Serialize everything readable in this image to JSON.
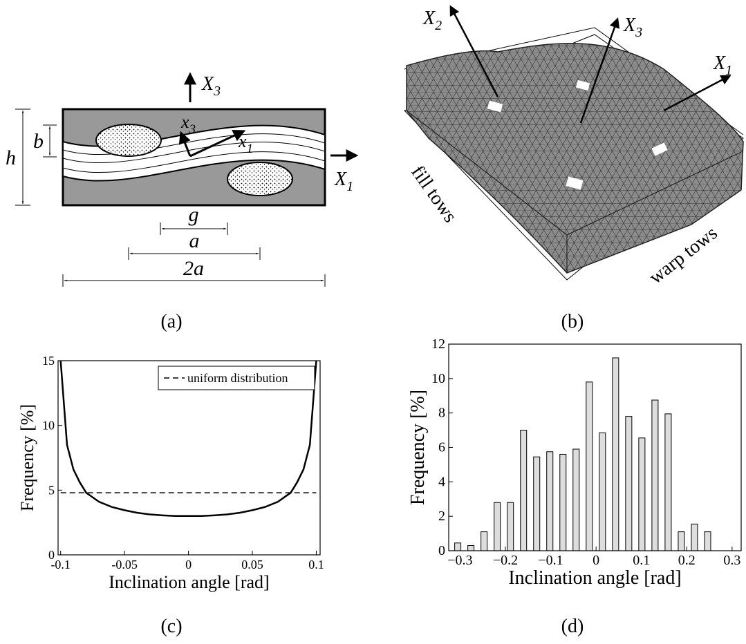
{
  "figure": {
    "panel_a": {
      "caption": "(a)",
      "X3": [
        "X",
        "3"
      ],
      "x3": [
        "x",
        "3"
      ],
      "x1": [
        "x",
        "1"
      ],
      "X1": [
        "X",
        "1"
      ],
      "b": "b",
      "h": "h",
      "g": "g",
      "a": "a",
      "two_a": "2a"
    },
    "panel_b": {
      "caption": "(b)",
      "X2": [
        "X",
        "2"
      ],
      "X3": [
        "X",
        "3"
      ],
      "X1": [
        "X",
        "1"
      ],
      "fill": "fill tows",
      "warp": "warp tows"
    },
    "panel_c_caption": "(c)",
    "panel_d_caption": "(d)"
  },
  "chart_data": [
    {
      "type": "line",
      "ylabel": "Frequency [%]",
      "xlabel": "Inclination angle [rad]",
      "x": [
        -0.1,
        -0.095,
        -0.09,
        -0.085,
        -0.08,
        -0.07,
        -0.06,
        -0.05,
        -0.04,
        -0.03,
        -0.02,
        -0.01,
        0,
        0.01,
        0.02,
        0.03,
        0.04,
        0.05,
        0.06,
        0.07,
        0.08,
        0.085,
        0.09,
        0.095,
        0.1
      ],
      "series": [
        {
          "color": "#000000",
          "values": [
            15,
            8.5,
            6.6,
            5.6,
            4.8,
            4.1,
            3.7,
            3.45,
            3.25,
            3.12,
            3.05,
            3.0,
            3.0,
            3.0,
            3.05,
            3.12,
            3.25,
            3.45,
            3.7,
            4.1,
            4.8,
            5.6,
            6.6,
            8.5,
            15
          ]
        },
        {
          "name": "uniform distribution",
          "color": "#000000",
          "dashed": true,
          "values": [
            4.8,
            4.8,
            4.8,
            4.8,
            4.8,
            4.8,
            4.8,
            4.8,
            4.8,
            4.8,
            4.8,
            4.8,
            4.8,
            4.8,
            4.8,
            4.8,
            4.8,
            4.8,
            4.8,
            4.8,
            4.8,
            4.8,
            4.8,
            4.8,
            4.8
          ]
        }
      ],
      "xlim": [
        -0.102,
        0.103
      ],
      "ylim": [
        0,
        15
      ],
      "xticks": [
        -0.1,
        -0.05,
        0,
        0.05,
        0.1
      ],
      "yticks": [
        0,
        5,
        10,
        15
      ],
      "legend": "upper right"
    },
    {
      "type": "bar",
      "ylabel": "Frequency [%]",
      "xlabel": "Inclination angle [rad]",
      "color": "#dddddd",
      "x": [
        -0.305,
        -0.276,
        -0.247,
        -0.218,
        -0.189,
        -0.16,
        -0.131,
        -0.102,
        -0.073,
        -0.044,
        -0.015,
        0.014,
        0.043,
        0.072,
        0.101,
        0.13,
        0.159,
        0.188,
        0.217,
        0.246
      ],
      "values": [
        0.45,
        0.3,
        1.1,
        2.8,
        2.8,
        7.0,
        5.45,
        5.75,
        5.6,
        5.9,
        9.8,
        6.85,
        11.2,
        7.8,
        6.55,
        8.75,
        7.95,
        1.1,
        1.55,
        1.1
      ],
      "xlim": [
        -0.325,
        0.32
      ],
      "ylim": [
        0,
        12
      ],
      "xticks": [
        {
          "value": -0.3,
          "label": "−0.3"
        },
        {
          "value": -0.2,
          "label": "−0.2"
        },
        {
          "value": -0.1,
          "label": "−0.1"
        },
        0,
        0.1,
        0.2,
        0.3
      ],
      "yticks": [
        0,
        2,
        4,
        6,
        8,
        10,
        12
      ]
    }
  ]
}
